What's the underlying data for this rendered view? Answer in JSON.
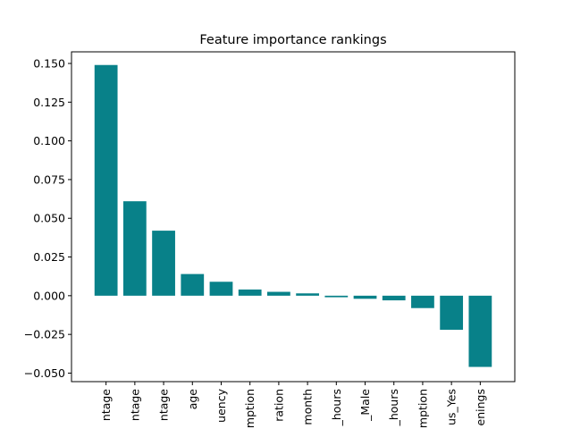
{
  "chart_data": {
    "type": "bar",
    "title": "Feature importance rankings",
    "xlabel": "",
    "ylabel": "",
    "categories": [
      "ntage",
      "ntage",
      "ntage",
      "age",
      "uency",
      "mption",
      "ration",
      "month",
      "_hours",
      "_Male",
      "_hours",
      "mption",
      "us_Yes",
      "enings"
    ],
    "values": [
      0.149,
      0.061,
      0.042,
      0.014,
      0.009,
      0.004,
      0.0025,
      0.0015,
      -0.001,
      -0.002,
      -0.003,
      -0.008,
      -0.022,
      -0.046
    ],
    "ylim": [
      -0.0555,
      0.1575
    ],
    "yticks": [
      -0.05,
      -0.025,
      0.0,
      0.025,
      0.05,
      0.075,
      0.1,
      0.125,
      0.15
    ],
    "ytick_labels": [
      "−0.050",
      "−0.025",
      "0.000",
      "0.025",
      "0.050",
      "0.075",
      "0.100",
      "0.125",
      "0.150"
    ],
    "bar_color": "#088189",
    "grid": false,
    "legend": "none"
  }
}
